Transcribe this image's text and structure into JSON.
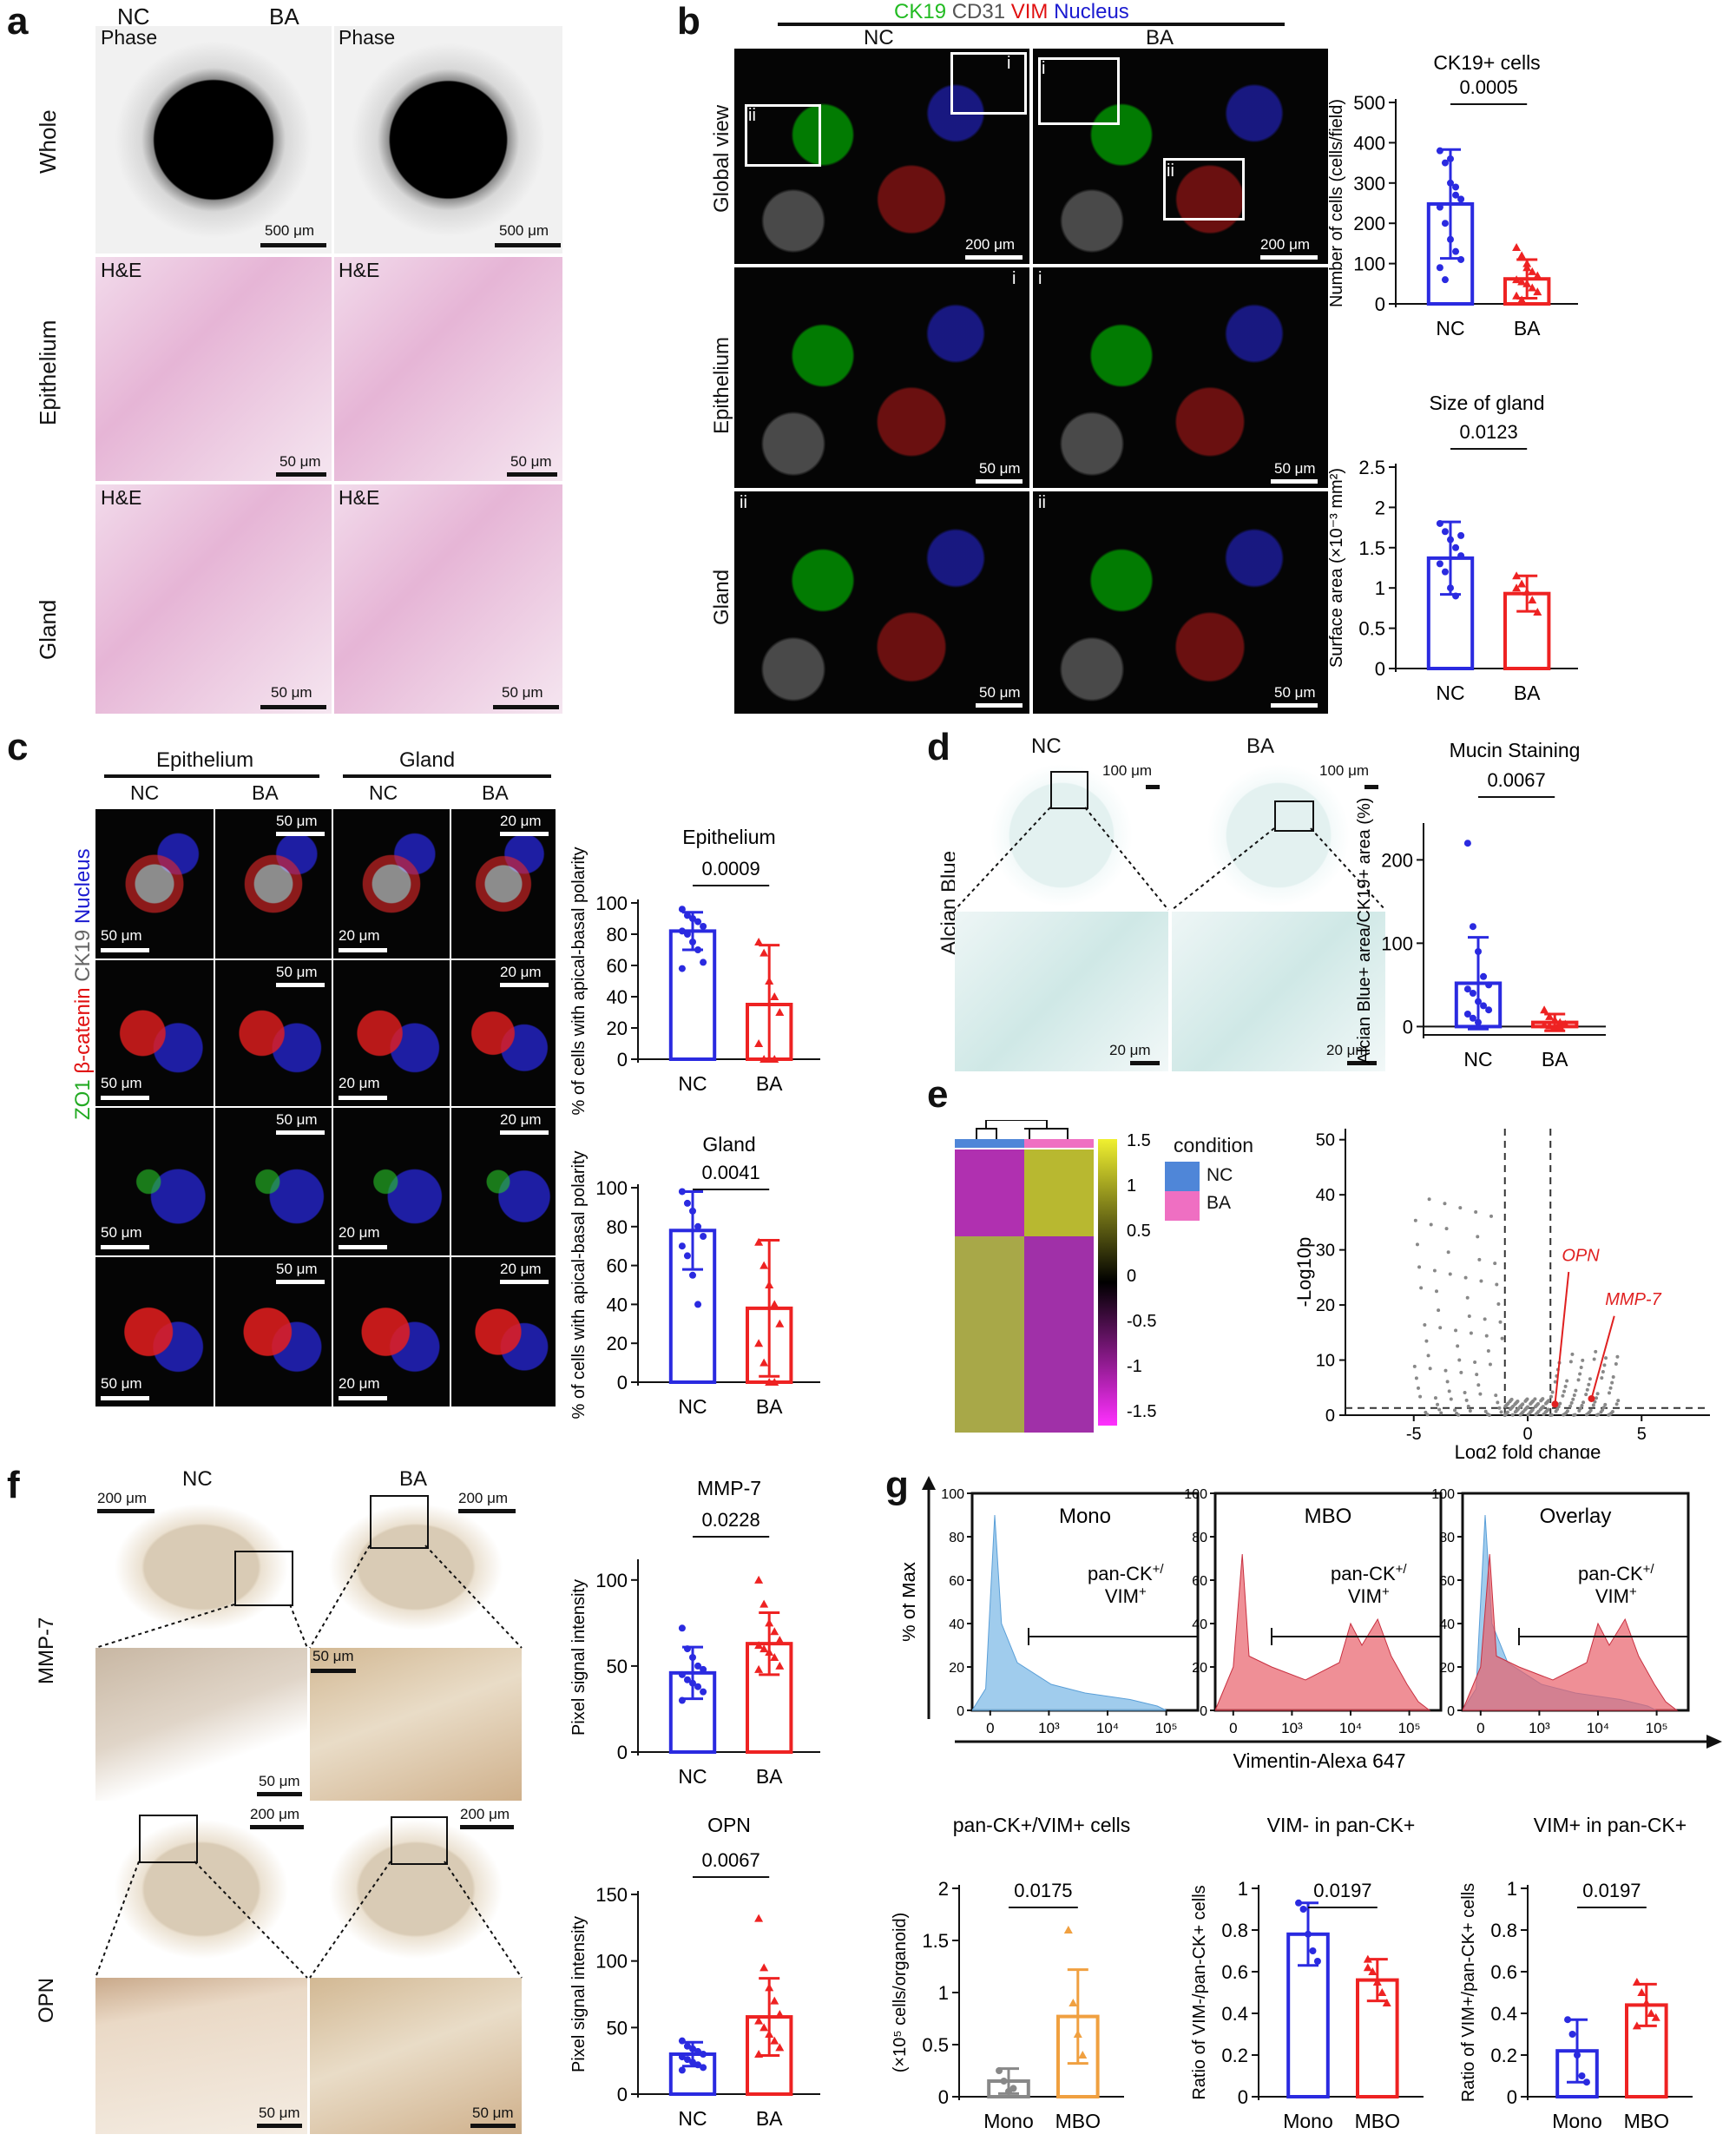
{
  "panel_a": {
    "letter": "a",
    "cols": [
      "NC",
      "BA"
    ],
    "rows": [
      "Whole",
      "Epithelium",
      "Gland"
    ],
    "tags": [
      "Phase",
      "Phase",
      "H&E",
      "H&E",
      "H&E",
      "H&E"
    ],
    "scales": [
      "500 μm",
      "500 μm",
      "50 μm",
      "50 μm",
      "50 μm",
      "50 μm"
    ]
  },
  "panel_b": {
    "letter": "b",
    "stain": [
      "CK19",
      "CD31",
      "VIM",
      "Nucleus"
    ],
    "stain_colors": [
      "#22bb22",
      "#555555",
      "#e01010",
      "#1a1ad0"
    ],
    "cols": [
      "NC",
      "BA"
    ],
    "rows": [
      "Global view",
      "Epithelium",
      "Gland"
    ],
    "roman": [
      "i",
      "ii",
      "i",
      "ii",
      "i",
      "i",
      "ii",
      "ii"
    ],
    "scales": [
      "200 μm",
      "200 μm",
      "50 μm",
      "50 μm",
      "50 μm",
      "50 μm"
    ]
  },
  "panel_c": {
    "letter": "c",
    "groups": [
      "Epithelium",
      "Gland"
    ],
    "cols": [
      "NC",
      "BA",
      "NC",
      "BA"
    ],
    "ylabel": "ZO1 β-catenin CK19 Nucleus",
    "ylabel_parts": [
      "ZO1",
      "β-catenin",
      "CK19",
      "Nucleus"
    ],
    "ylabel_colors": [
      "#22aa22",
      "#e01010",
      "#666666",
      "#1a1ad0"
    ],
    "scales_50": "50 μm",
    "scales_20": "20 μm"
  },
  "panel_d": {
    "letter": "d",
    "cols": [
      "NC",
      "BA"
    ],
    "row": "Alcian Blue",
    "scales": [
      "100 μm",
      "100 μm",
      "20 μm",
      "20 μm"
    ]
  },
  "panel_e": {
    "letter": "e",
    "legend_title": "condition",
    "legend_items": [
      "NC",
      "BA"
    ],
    "legend_colors": [
      "#4f86d8",
      "#ef6fc2"
    ],
    "colorbar_ticks": [
      "1.5",
      "1",
      "0.5",
      "0",
      "-0.5",
      "-1",
      "-1.5"
    ],
    "volcano_xlabel": "Log2 fold change",
    "volcano_ylabel": "-Log10p",
    "volcano_xticks": [
      "-5",
      "0",
      "5"
    ],
    "volcano_yticks": [
      "0",
      "10",
      "20",
      "30",
      "40",
      "50"
    ],
    "annotations": [
      "OPN",
      "MMP-7"
    ]
  },
  "panel_f": {
    "letter": "f",
    "cols": [
      "NC",
      "BA"
    ],
    "rows": [
      "MMP-7",
      "OPN"
    ],
    "scales": [
      "200 μm",
      "200 μm",
      "50 μm",
      "50 μm",
      "200 μm",
      "200 μm",
      "50 μm",
      "50 μm"
    ]
  },
  "panel_g": {
    "letter": "g",
    "hist_titles": [
      "Mono",
      "MBO",
      "Overlay"
    ],
    "hist_ylabel": "% of Max",
    "hist_xlabel": "Vimentin-Alexa 647",
    "gate_label": "pan-CK+/ VIM+",
    "gate_line1": "pan-CK",
    "gate_line2": "VIM",
    "hist_yticks": [
      "0",
      "20",
      "40",
      "60",
      "80",
      "100"
    ],
    "hist_xticks": [
      "0",
      "10³",
      "10⁴",
      "10⁵"
    ],
    "mono_color": "#8fc3ea",
    "mbo_color": "#e8606a"
  },
  "colors": {
    "nc": "#2a2ae0",
    "ba": "#ee2222",
    "mono_grey": "#888888",
    "mbo_orange": "#f0a040"
  },
  "chart_data": [
    {
      "type": "bar",
      "title": "CK19+ cells",
      "ylabel": "Number of cells (cells/field)",
      "categories": [
        "NC",
        "BA"
      ],
      "values": [
        248,
        62
      ],
      "sd": [
        135,
        48
      ],
      "ylim": [
        0,
        500
      ],
      "yticks": [
        0,
        100,
        200,
        300,
        400,
        500
      ],
      "p": "0.0005",
      "points": [
        [
          380,
          350,
          300,
          270,
          260,
          240,
          200,
          160,
          130,
          110,
          90,
          60,
          360,
          290
        ],
        [
          140,
          120,
          100,
          80,
          70,
          60,
          55,
          50,
          40,
          30,
          20,
          10,
          90
        ]
      ]
    },
    {
      "type": "bar",
      "title": "Size of gland",
      "ylabel": "Surface area (×10⁻³ mm²)",
      "categories": [
        "NC",
        "BA"
      ],
      "values": [
        1.37,
        0.93
      ],
      "sd": [
        0.45,
        0.22
      ],
      "ylim": [
        0,
        2.5
      ],
      "yticks": [
        0,
        0.5,
        1.0,
        1.5,
        2.0,
        2.5
      ],
      "p": "0.0123",
      "points": [
        [
          1.8,
          1.7,
          1.6,
          1.5,
          1.4,
          1.3,
          1.2,
          1.0,
          0.9,
          1.65
        ],
        [
          1.15,
          1.05,
          0.95,
          0.85,
          0.7,
          1.0
        ]
      ]
    },
    {
      "type": "bar",
      "title": "Epithelium",
      "ylabel": "% of cells with apical-basal polarity",
      "categories": [
        "NC",
        "BA"
      ],
      "values": [
        82,
        35
      ],
      "sd": [
        12,
        38
      ],
      "ylim": [
        0,
        100
      ],
      "yticks": [
        0,
        20,
        40,
        60,
        80,
        100
      ],
      "p": "0.0009",
      "points": [
        [
          96,
          92,
          90,
          88,
          85,
          82,
          80,
          75,
          70,
          62,
          58
        ],
        [
          75,
          68,
          50,
          40,
          30,
          10,
          0,
          0,
          0
        ]
      ]
    },
    {
      "type": "bar",
      "title": "Gland",
      "ylabel": "% of cells with apical-basal polarity",
      "categories": [
        "NC",
        "BA"
      ],
      "values": [
        78,
        38
      ],
      "sd": [
        20,
        35
      ],
      "ylim": [
        0,
        100
      ],
      "yticks": [
        0,
        20,
        40,
        60,
        80,
        100
      ],
      "p": "0.0041",
      "points": [
        [
          98,
          92,
          88,
          80,
          75,
          70,
          65,
          55,
          40
        ],
        [
          72,
          60,
          50,
          40,
          30,
          20,
          10,
          0,
          0
        ]
      ]
    },
    {
      "type": "bar",
      "title": "Mucin Staining",
      "ylabel": "Alcian Blue+ area/CK19+ area (%)",
      "categories": [
        "NC",
        "BA"
      ],
      "values": [
        52,
        5
      ],
      "sd": [
        55,
        10
      ],
      "ylim": [
        -10,
        240
      ],
      "yticks": [
        0,
        100,
        200
      ],
      "p": "0.0067",
      "points": [
        [
          220,
          120,
          90,
          60,
          50,
          45,
          40,
          30,
          25,
          20,
          15,
          10,
          5
        ],
        [
          20,
          12,
          8,
          5,
          3,
          2,
          1,
          0,
          0
        ]
      ]
    },
    {
      "type": "bar",
      "title": "MMP-7",
      "ylabel": "Pixel signal intensity",
      "categories": [
        "NC",
        "BA"
      ],
      "values": [
        46,
        63
      ],
      "sd": [
        15,
        18
      ],
      "ylim": [
        0,
        110
      ],
      "yticks": [
        0,
        50,
        100
      ],
      "p": "0.0228",
      "points": [
        [
          72,
          60,
          55,
          50,
          48,
          45,
          42,
          40,
          38,
          35,
          30
        ],
        [
          100,
          86,
          75,
          70,
          65,
          62,
          60,
          58,
          55,
          50,
          48
        ]
      ]
    },
    {
      "type": "bar",
      "title": "OPN",
      "ylabel": "Pixel signal intensity",
      "categories": [
        "NC",
        "BA"
      ],
      "values": [
        30,
        58
      ],
      "sd": [
        9,
        29
      ],
      "ylim": [
        0,
        150
      ],
      "yticks": [
        0,
        50,
        100,
        150
      ],
      "p": "0.0067",
      "points": [
        [
          40,
          36,
          34,
          32,
          30,
          28,
          26,
          24,
          22,
          20,
          18
        ],
        [
          132,
          95,
          80,
          70,
          60,
          55,
          50,
          45,
          40,
          35,
          30
        ]
      ]
    },
    {
      "type": "bar",
      "title": "pan-CK+/VIM+ cells",
      "ylabel": "(×10⁵ cells/organoid)",
      "categories": [
        "Mono",
        "MBO"
      ],
      "values": [
        0.15,
        0.77
      ],
      "sd": [
        0.12,
        0.45
      ],
      "ylim": [
        0,
        2.0
      ],
      "yticks": [
        0,
        0.5,
        1.0,
        1.5,
        2.0
      ],
      "p": "0.0175",
      "points": [
        [
          0.25,
          0.15,
          0.05,
          0.08
        ],
        [
          1.6,
          0.9,
          0.6,
          0.4
        ]
      ]
    },
    {
      "type": "bar",
      "title": "VIM- in pan-CK+",
      "ylabel": "Ratio of VIM-/pan-CK+ cells",
      "categories": [
        "Mono",
        "MBO"
      ],
      "values": [
        0.78,
        0.56
      ],
      "sd": [
        0.15,
        0.1
      ],
      "ylim": [
        0,
        1.0
      ],
      "yticks": [
        0,
        0.2,
        0.4,
        0.6,
        0.8,
        1.0
      ],
      "p": "0.0197",
      "points": [
        [
          0.93,
          0.9,
          0.78,
          0.7,
          0.65
        ],
        [
          0.66,
          0.6,
          0.55,
          0.5,
          0.45,
          0.62
        ]
      ]
    },
    {
      "type": "bar",
      "title": "VIM+ in pan-CK+",
      "ylabel": "Ratio of VIM+/pan-CK+ cells",
      "categories": [
        "Mono",
        "MBO"
      ],
      "values": [
        0.22,
        0.44
      ],
      "sd": [
        0.15,
        0.1
      ],
      "ylim": [
        0,
        1.0
      ],
      "yticks": [
        0,
        0.2,
        0.4,
        0.6,
        0.8,
        1.0
      ],
      "p": "0.0197",
      "points": [
        [
          0.37,
          0.3,
          0.2,
          0.1,
          0.07
        ],
        [
          0.55,
          0.5,
          0.45,
          0.4,
          0.38,
          0.34
        ]
      ]
    }
  ]
}
